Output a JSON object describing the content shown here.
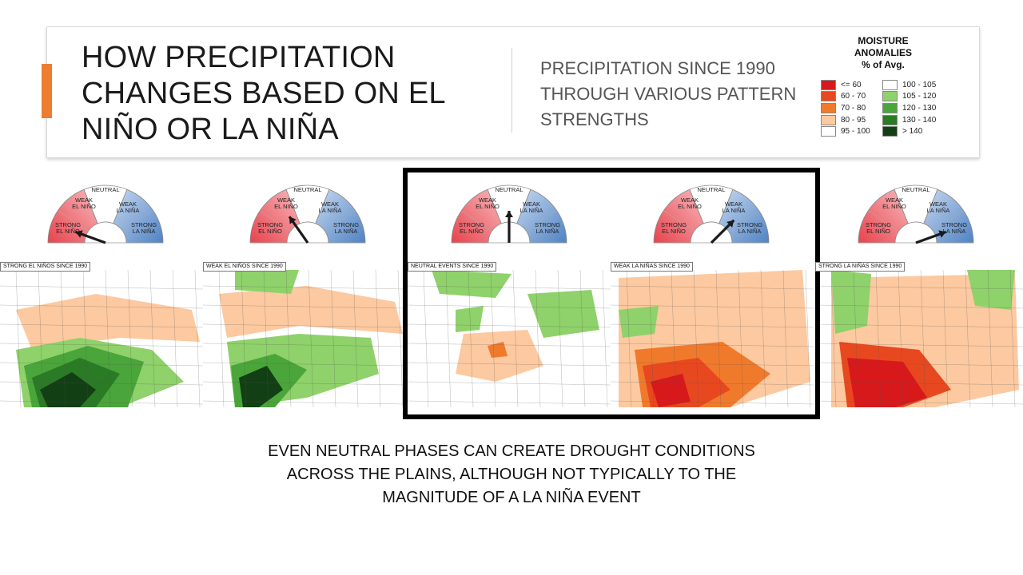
{
  "slide": {
    "title_lines": [
      "HOW PRECIPITATION",
      "CHANGES BASED ON EL",
      "NIÑO OR LA NIÑA"
    ],
    "subtitle_lines": [
      "PRECIPITATION SINCE 1990",
      "THROUGH VARIOUS PATTERN",
      "STRENGTHS"
    ],
    "accent_color": "#ed7d31",
    "caption_lines": [
      "EVEN NEUTRAL PHASES CAN CREATE DROUGHT CONDITIONS",
      "ACROSS THE PLAINS, ALTHOUGH NOT TYPICALLY TO THE",
      "MAGNITUDE OF A LA NIÑA EVENT"
    ]
  },
  "legend": {
    "title_lines": [
      "MOISTURE",
      "ANOMALIES",
      "% of Avg."
    ],
    "left_items": [
      {
        "label": "<= 60",
        "color": "#d7191c"
      },
      {
        "label": "60 - 70",
        "color": "#e8481f"
      },
      {
        "label": "70 - 80",
        "color": "#f07a2c"
      },
      {
        "label": "80 - 95",
        "color": "#fcc9a0"
      },
      {
        "label": "95 - 100",
        "color": "#ffffff"
      }
    ],
    "right_items": [
      {
        "label": "100 - 105",
        "color": "#ffffff"
      },
      {
        "label": "105 - 120",
        "color": "#8fd16a"
      },
      {
        "label": "120 - 130",
        "color": "#4aa53a"
      },
      {
        "label": "130 - 140",
        "color": "#2b7a26"
      },
      {
        "label": "> 140",
        "color": "#123f14"
      }
    ]
  },
  "gauge_labels": {
    "neutral": "NEUTRAL",
    "weak_el_nino": [
      "WEAK",
      "EL NIÑO"
    ],
    "weak_la_nina": [
      "WEAK",
      "LA NIÑA"
    ],
    "strong_el_nino": [
      "STRONG",
      "EL NIÑO"
    ],
    "strong_la_nina": [
      "STRONG",
      "LA NIÑA"
    ],
    "el_nino_color": "#e8434d",
    "la_nina_color": "#4f83c4",
    "neutral_color": "#ffffff"
  },
  "panels": [
    {
      "label": "STRONG EL NIÑOS SINCE 1990",
      "needle_angle_deg": 160
    },
    {
      "label": "WEAK EL NIÑOS SINCE 1990",
      "needle_angle_deg": 125
    },
    {
      "label": "NEUTRAL EVENTS SINCE 1990",
      "needle_angle_deg": 90
    },
    {
      "label": "WEAK LA NIÑAS SINCE 1990",
      "needle_angle_deg": 45
    },
    {
      "label": "STRONG LA NIÑAS SINCE 1990",
      "needle_angle_deg": 20
    }
  ],
  "highlighted_panel": "NEUTRAL EVENTS SINCE 1990"
}
